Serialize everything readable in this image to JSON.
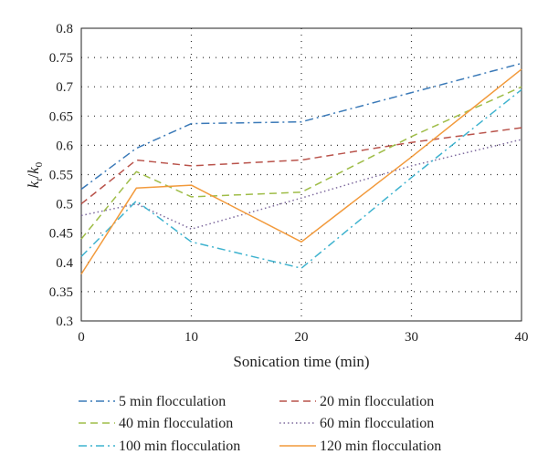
{
  "chart_data": {
    "type": "line",
    "xlabel": "Sonication time (min)",
    "ylabel": "k/k0",
    "ylabel_parts": {
      "main": "k",
      "sub1": "t",
      "slash": "/",
      "main2": "k",
      "sub2": "0"
    },
    "xlim": [
      0,
      40
    ],
    "ylim": [
      0.3,
      0.8
    ],
    "x_ticks": [
      "0",
      "10",
      "20",
      "30",
      "40"
    ],
    "y_ticks": [
      "0.3",
      "0.35",
      "0.4",
      "0.45",
      "0.5",
      "0.55",
      "0.6",
      "0.65",
      "0.7",
      "0.75",
      "0.8"
    ],
    "grid": true,
    "legend_position": "bottom",
    "series": [
      {
        "name": "5 min flocculation",
        "color": "#3b7ab8",
        "dash": "dashdot",
        "x": [
          0,
          5,
          10,
          20,
          30,
          40
        ],
        "y": [
          0.525,
          0.595,
          0.637,
          0.64,
          0.69,
          0.74
        ]
      },
      {
        "name": "20 min flocculation",
        "color": "#b9534b",
        "dash": "dashed",
        "x": [
          0,
          5,
          10,
          20,
          30,
          40
        ],
        "y": [
          0.5,
          0.575,
          0.565,
          0.575,
          0.605,
          0.63
        ]
      },
      {
        "name": "40 min flocculation",
        "color": "#9fbd48",
        "dash": "dashed",
        "x": [
          0,
          5,
          10,
          20,
          30,
          40
        ],
        "y": [
          0.44,
          0.555,
          0.512,
          0.52,
          0.615,
          0.7
        ]
      },
      {
        "name": "60 min flocculation",
        "color": "#7e6a9e",
        "dash": "dotted",
        "x": [
          0,
          5,
          10,
          20,
          30,
          40
        ],
        "y": [
          0.48,
          0.5,
          0.457,
          0.51,
          0.565,
          0.61
        ]
      },
      {
        "name": "100 min flocculation",
        "color": "#3fb3cf",
        "dash": "dashdot",
        "x": [
          0,
          5,
          10,
          20,
          30,
          40
        ],
        "y": [
          0.41,
          0.505,
          0.435,
          0.39,
          0.545,
          0.695
        ]
      },
      {
        "name": "120 min flocculation",
        "color": "#f29a3c",
        "dash": "solid",
        "x": [
          0,
          5,
          10,
          20,
          30,
          40
        ],
        "y": [
          0.38,
          0.527,
          0.532,
          0.435,
          0.58,
          0.73
        ]
      }
    ]
  }
}
